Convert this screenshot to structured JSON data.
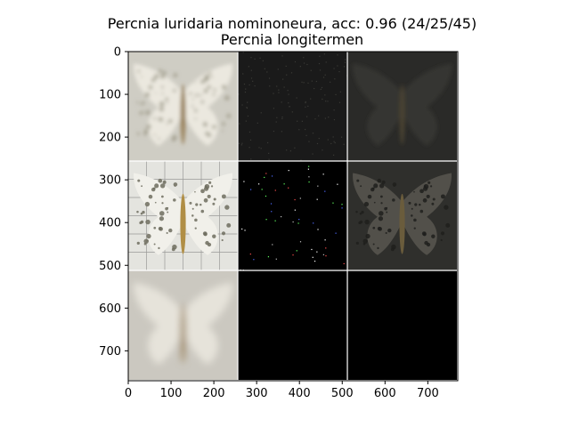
{
  "title_line1": "Percnia luridaria nominoneura, acc: 0.96 (24/25/45)",
  "title_line2": "Percnia longitermen",
  "chart_data": {
    "type": "image-grid",
    "title": "Percnia luridaria nominoneura, acc: 0.96 (24/25/45)",
    "subtitle": "Percnia longitermen",
    "xlim": [
      0,
      770
    ],
    "ylim": [
      770,
      0
    ],
    "xticks": [
      0,
      100,
      200,
      300,
      400,
      500,
      600,
      700
    ],
    "yticks": [
      0,
      100,
      200,
      300,
      400,
      500,
      600,
      700
    ],
    "grid_size": [
      3,
      3
    ],
    "panel_size": 256,
    "panels": [
      {
        "row": 0,
        "col": 0,
        "content": "pale blurred moth",
        "color": "#cfcdc4"
      },
      {
        "row": 0,
        "col": 1,
        "content": "dark noise attribution",
        "color": "#1a1a1a"
      },
      {
        "row": 0,
        "col": 2,
        "content": "dark moth overlay",
        "color": "#2a2a28"
      },
      {
        "row": 1,
        "col": 0,
        "content": "spotted moth photograph",
        "color": "#e4e4df"
      },
      {
        "row": 1,
        "col": 1,
        "content": "sparse colored speckles",
        "color": "#000000"
      },
      {
        "row": 1,
        "col": 2,
        "content": "darkened moth with speckles",
        "color": "#2f2f2c"
      },
      {
        "row": 2,
        "col": 0,
        "content": "very blurred moth",
        "color": "#cbc8c0"
      },
      {
        "row": 2,
        "col": 1,
        "content": "black",
        "color": "#000000"
      },
      {
        "row": 2,
        "col": 2,
        "content": "black",
        "color": "#000000"
      }
    ]
  }
}
